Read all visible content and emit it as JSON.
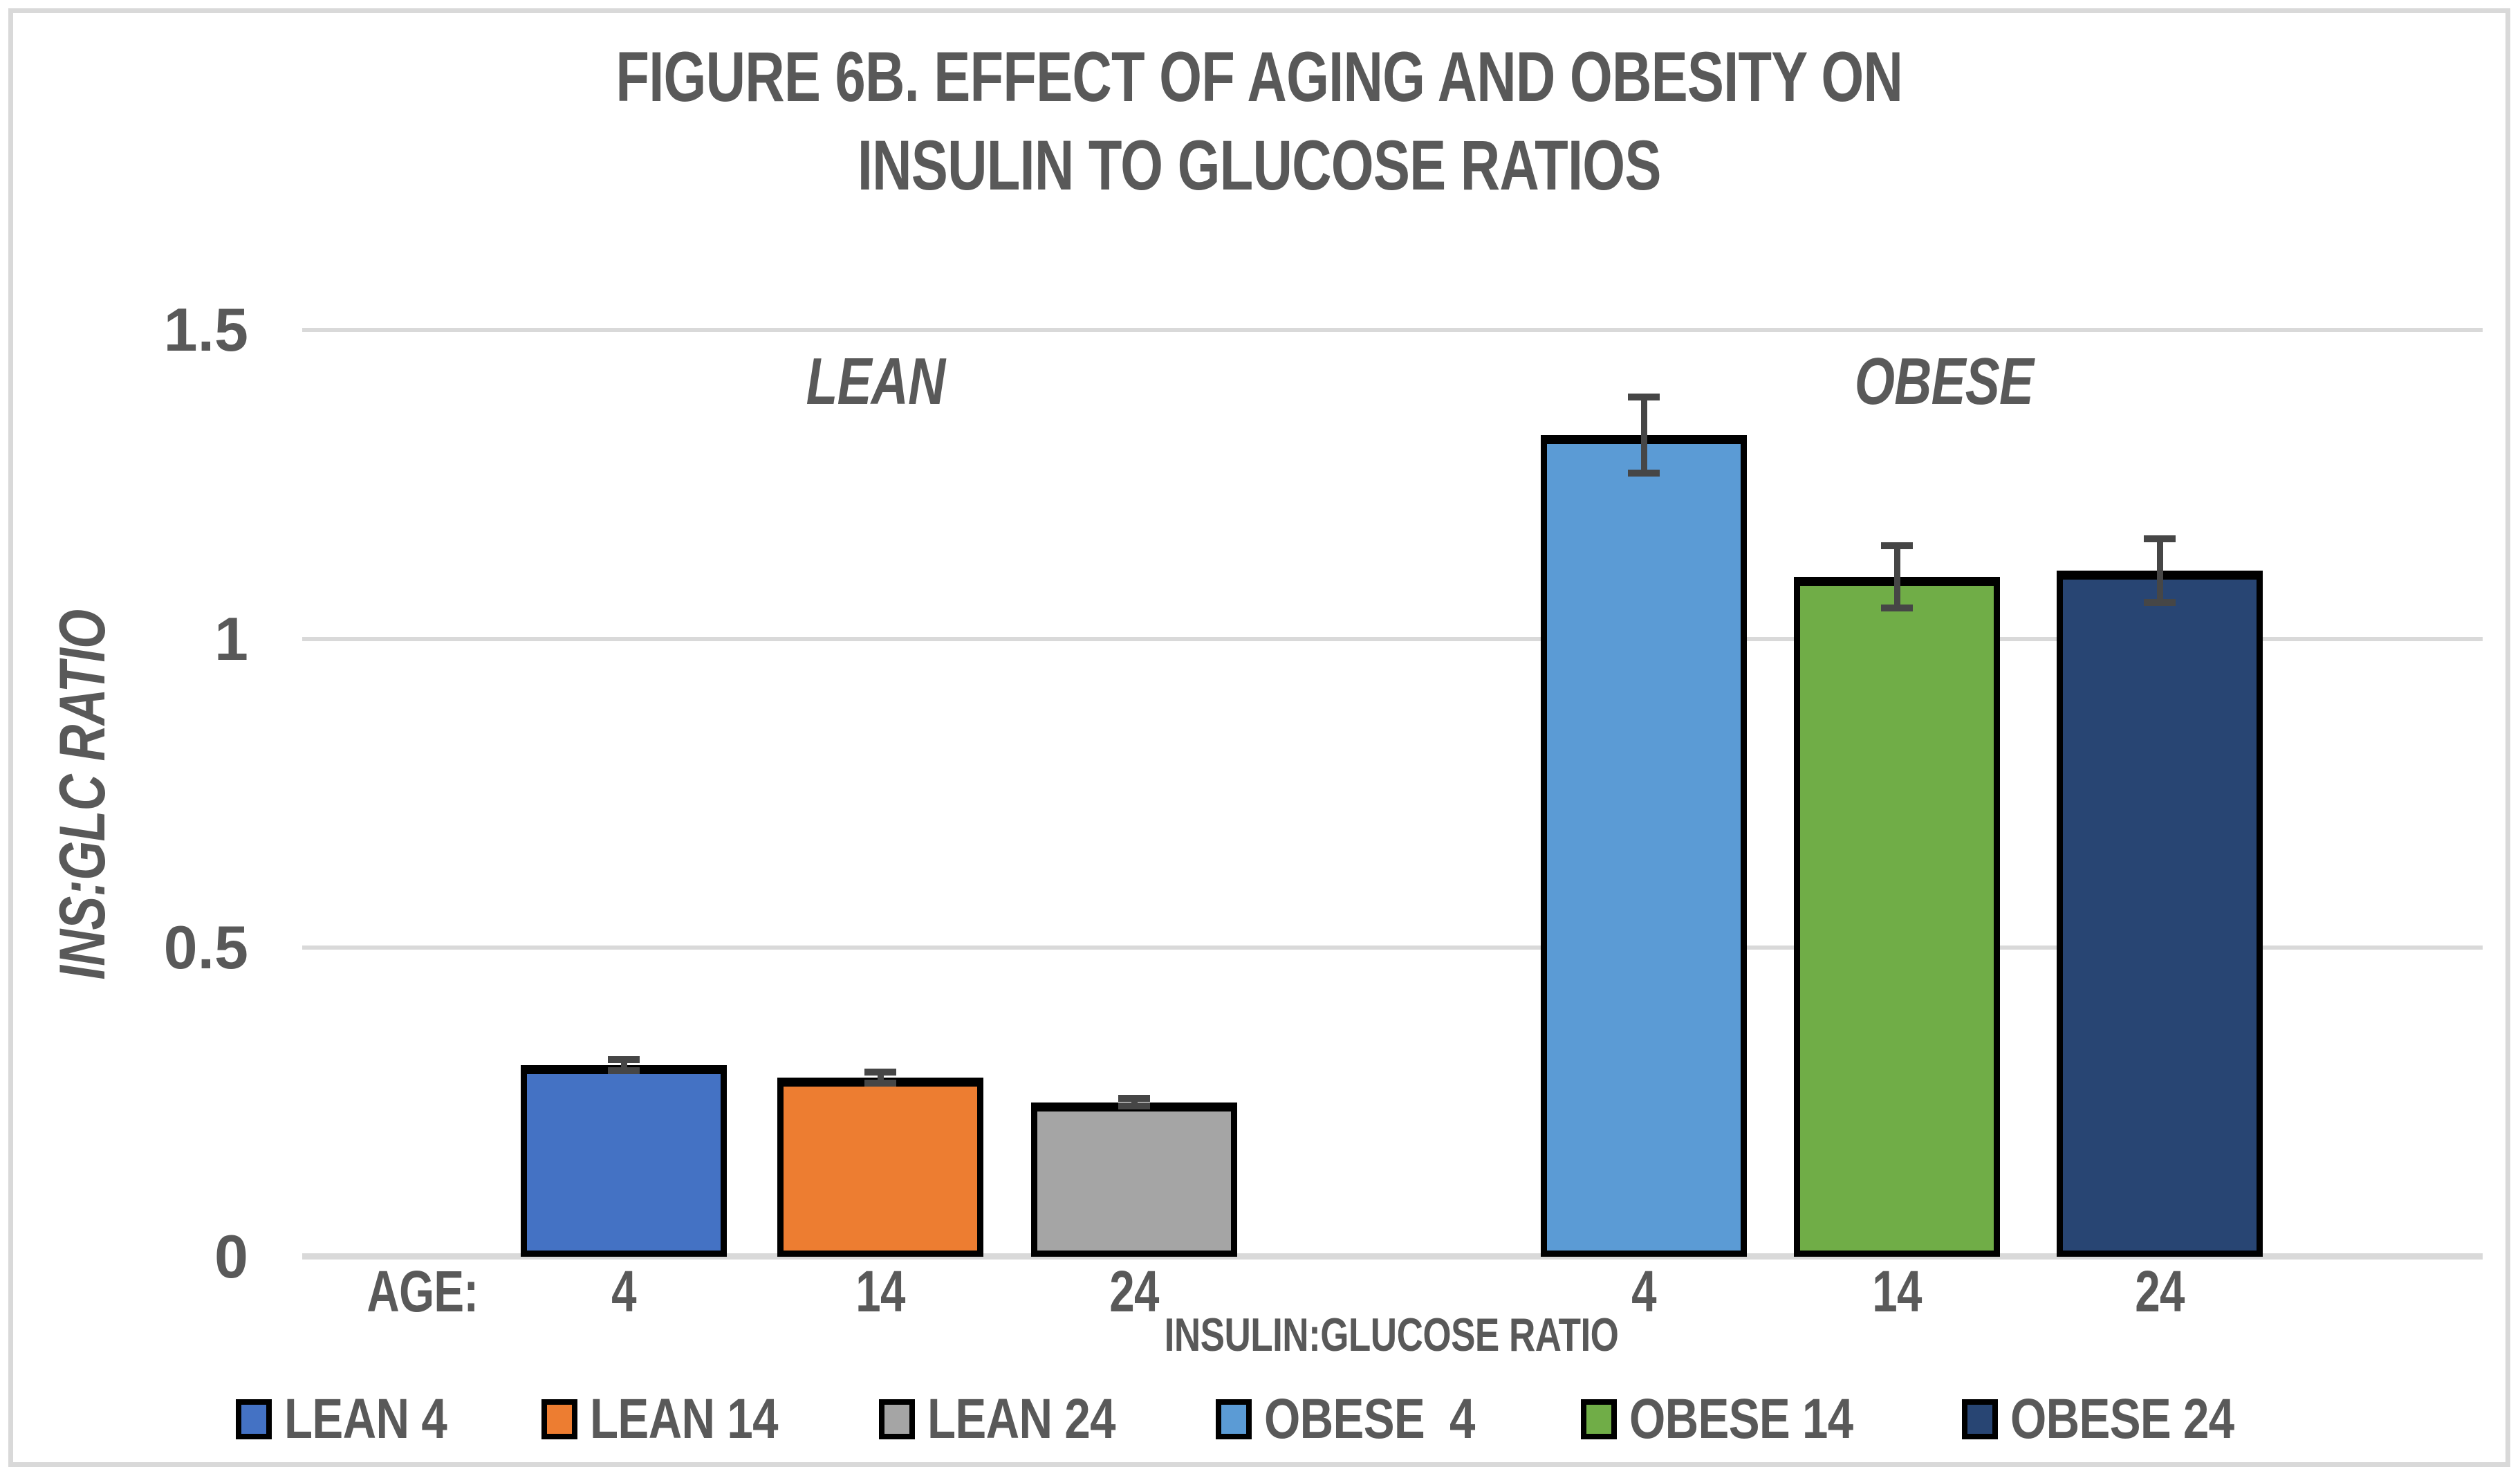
{
  "figure": {
    "title_line1": "FIGURE 6B. EFFECT OF AGING AND OBESITY ON",
    "title_line2": "INSULIN TO GLUCOSE RATIOS"
  },
  "chart_data": {
    "type": "bar",
    "title": "FIGURE 6B. EFFECT OF AGING AND OBESITY ON INSULIN TO GLUCOSE RATIOS",
    "xlabel": "INSULIN:GLUCOSE RATIO",
    "ylabel": "INS:GLC RATIO",
    "x_prefix_label": "AGE:",
    "group_annotations": [
      "LEAN",
      "OBESE"
    ],
    "categories": [
      "4",
      "14",
      "24",
      "4",
      "14",
      "24"
    ],
    "series": [
      {
        "name": "LEAN 4",
        "value": 0.31,
        "error": 0.015,
        "color": "#4472C4"
      },
      {
        "name": "LEAN 14",
        "value": 0.29,
        "error": 0.015,
        "color": "#ED7D31"
      },
      {
        "name": "LEAN 24",
        "value": 0.25,
        "error": 0.012,
        "color": "#A5A5A5"
      },
      {
        "name": "OBESE  4",
        "value": 1.33,
        "error": 0.067,
        "color": "#5B9BD5"
      },
      {
        "name": "OBESE 14",
        "value": 1.1,
        "error": 0.056,
        "color": "#70AD47"
      },
      {
        "name": "OBESE 24",
        "value": 1.11,
        "error": 0.057,
        "color": "#284573"
      }
    ],
    "ylim": [
      0,
      1.5
    ],
    "yticks": [
      {
        "v": 0,
        "label": "0"
      },
      {
        "v": 0.5,
        "label": "0.5"
      },
      {
        "v": 1,
        "label": "1"
      },
      {
        "v": 1.5,
        "label": "1.5"
      }
    ],
    "grid": true,
    "legend_position": "bottom"
  },
  "colors": {
    "text": "#595959",
    "gridline": "#D9D9D9",
    "frame_border": "#D9D9D9",
    "error_bar": "#464646",
    "bar_outline": "#000000"
  }
}
